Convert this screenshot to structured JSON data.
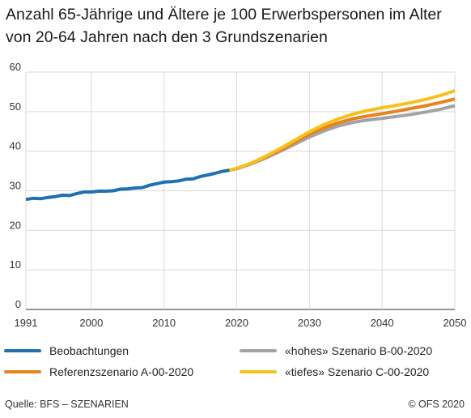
{
  "title": "Anzahl 65-Jährige und Ältere je 100 Erwerbspersonen im Alter von 20-64 Jahren nach den 3 Grundszenarien",
  "footer": {
    "source": "Quelle: BFS – SZENARIEN",
    "copyright": "© OFS 2020"
  },
  "chart_data": {
    "type": "line",
    "xlim": [
      1991,
      2050
    ],
    "ylim": [
      0,
      60
    ],
    "xticks": [
      1991,
      2000,
      2010,
      2020,
      2030,
      2040,
      2050
    ],
    "yticks": [
      0,
      10,
      20,
      30,
      40,
      50,
      60
    ],
    "grid": true,
    "legend_position": "bottom",
    "series": [
      {
        "name": "Beobachtungen",
        "color": "#1f6fb3",
        "points": [
          [
            1991,
            27.8
          ],
          [
            1992,
            28.1
          ],
          [
            1993,
            28.0
          ],
          [
            1994,
            28.3
          ],
          [
            1995,
            28.5
          ],
          [
            1996,
            28.9
          ],
          [
            1997,
            28.8
          ],
          [
            1998,
            29.3
          ],
          [
            1999,
            29.7
          ],
          [
            2000,
            29.7
          ],
          [
            2001,
            29.9
          ],
          [
            2002,
            29.9
          ],
          [
            2003,
            30.0
          ],
          [
            2004,
            30.4
          ],
          [
            2005,
            30.5
          ],
          [
            2006,
            30.7
          ],
          [
            2007,
            30.8
          ],
          [
            2008,
            31.4
          ],
          [
            2009,
            31.8
          ],
          [
            2010,
            32.2
          ],
          [
            2011,
            32.3
          ],
          [
            2012,
            32.5
          ],
          [
            2013,
            32.9
          ],
          [
            2014,
            33.0
          ],
          [
            2015,
            33.6
          ],
          [
            2016,
            34.0
          ],
          [
            2017,
            34.4
          ],
          [
            2018,
            34.9
          ],
          [
            2019,
            35.2
          ]
        ]
      },
      {
        "name": "«hohes» Szenario B-00-2020",
        "color": "#a3a3a3",
        "points": [
          [
            2019,
            35.2
          ],
          [
            2020,
            35.6
          ],
          [
            2022,
            36.8
          ],
          [
            2024,
            38.3
          ],
          [
            2026,
            40.0
          ],
          [
            2028,
            41.8
          ],
          [
            2030,
            43.6
          ],
          [
            2032,
            45.1
          ],
          [
            2034,
            46.4
          ],
          [
            2036,
            47.3
          ],
          [
            2038,
            47.9
          ],
          [
            2040,
            48.3
          ],
          [
            2042,
            48.8
          ],
          [
            2044,
            49.3
          ],
          [
            2046,
            49.9
          ],
          [
            2048,
            50.6
          ],
          [
            2050,
            51.5
          ]
        ]
      },
      {
        "name": "Referenzszenario A-00-2020",
        "color": "#e8821e",
        "points": [
          [
            2019,
            35.2
          ],
          [
            2020,
            35.6
          ],
          [
            2022,
            36.9
          ],
          [
            2024,
            38.5
          ],
          [
            2026,
            40.3
          ],
          [
            2028,
            42.3
          ],
          [
            2030,
            44.3
          ],
          [
            2032,
            45.9
          ],
          [
            2034,
            47.2
          ],
          [
            2036,
            48.2
          ],
          [
            2038,
            48.9
          ],
          [
            2040,
            49.5
          ],
          [
            2042,
            50.1
          ],
          [
            2044,
            50.8
          ],
          [
            2046,
            51.5
          ],
          [
            2048,
            52.3
          ],
          [
            2050,
            53.2
          ]
        ]
      },
      {
        "name": "«tiefes» Szenario C-00-2020",
        "color": "#f5c21b",
        "points": [
          [
            2019,
            35.2
          ],
          [
            2020,
            35.7
          ],
          [
            2022,
            37.0
          ],
          [
            2024,
            38.7
          ],
          [
            2026,
            40.7
          ],
          [
            2028,
            42.8
          ],
          [
            2030,
            44.9
          ],
          [
            2032,
            46.7
          ],
          [
            2034,
            48.2
          ],
          [
            2036,
            49.4
          ],
          [
            2038,
            50.3
          ],
          [
            2040,
            51.0
          ],
          [
            2042,
            51.6
          ],
          [
            2044,
            52.3
          ],
          [
            2046,
            53.1
          ],
          [
            2048,
            54.1
          ],
          [
            2050,
            55.3
          ]
        ]
      }
    ]
  }
}
